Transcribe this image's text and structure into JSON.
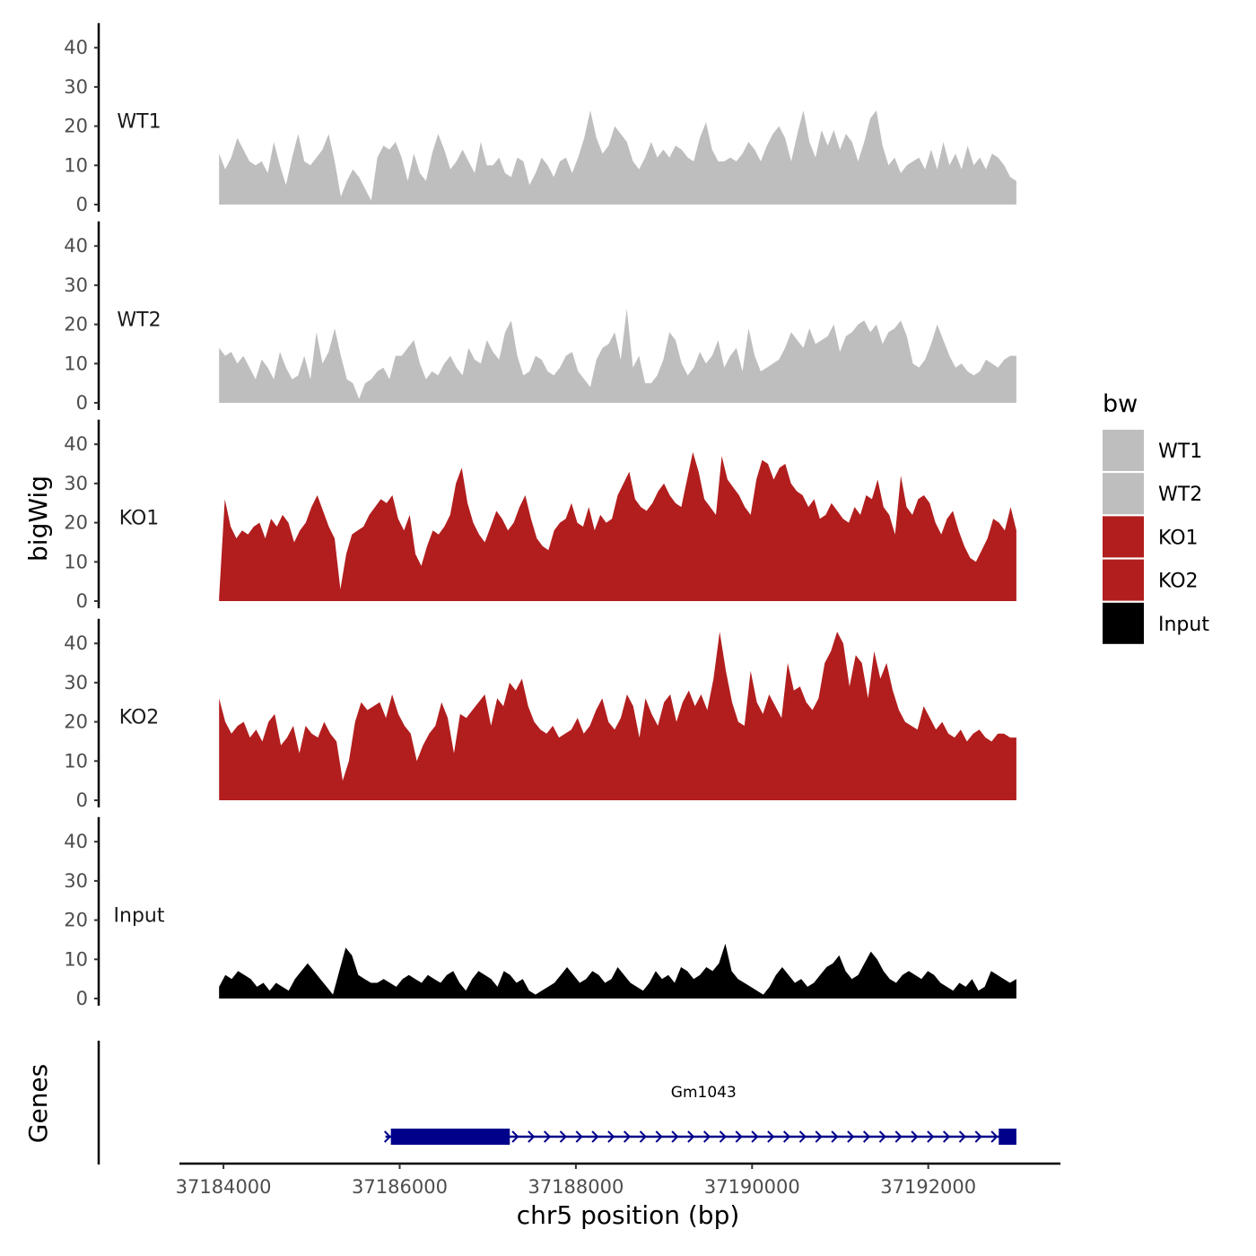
{
  "chart_data": {
    "type": "area",
    "ylabel": "bigWig",
    "xlabel": "chr5 position (bp)",
    "x_ticks": [
      37184000,
      37186000,
      37188000,
      37190000,
      37192000
    ],
    "x_tick_labels": [
      "37184000",
      "37186000",
      "37188000",
      "37190000",
      "37192000"
    ],
    "xlim": [
      37183500,
      37193500
    ],
    "y_ticks": [
      0,
      10,
      20,
      30,
      40
    ],
    "ylim": [
      0,
      44
    ],
    "x_start": 37183950,
    "x_end": 37193000,
    "series": [
      {
        "name": "WT1",
        "color": "#BEBEBE",
        "values": [
          13,
          9,
          12,
          17,
          14,
          11,
          10,
          11,
          8,
          16,
          10,
          5,
          12,
          18,
          11,
          10,
          12,
          14,
          18,
          11,
          2,
          6,
          9,
          7,
          4,
          1,
          12,
          15,
          14,
          16,
          12,
          6,
          13,
          8,
          6,
          13,
          18,
          14,
          9,
          11,
          14,
          11,
          8,
          16,
          10,
          10,
          12,
          8,
          7,
          12,
          11,
          5,
          8,
          12,
          10,
          7,
          11,
          12,
          8,
          12,
          17,
          24,
          17,
          13,
          15,
          20,
          18,
          16,
          11,
          9,
          12,
          16,
          12,
          14,
          12,
          15,
          14,
          12,
          11,
          17,
          21,
          14,
          11,
          11,
          12,
          11,
          13,
          16,
          14,
          11,
          15,
          18,
          20,
          17,
          11,
          18,
          24,
          16,
          12,
          19,
          15,
          19,
          14,
          18,
          16,
          11,
          16,
          22,
          24,
          15,
          10,
          12,
          8,
          10,
          11,
          12,
          9,
          14,
          9,
          16,
          10,
          13,
          9,
          15,
          10,
          12,
          9,
          13,
          12,
          10,
          7,
          6
        ]
      },
      {
        "name": "WT2",
        "color": "#BEBEBE",
        "values": [
          14,
          12,
          13,
          10,
          12,
          9,
          6,
          11,
          9,
          6,
          13,
          9,
          6,
          7,
          12,
          6,
          18,
          10,
          13,
          19,
          12,
          6,
          5,
          1,
          5,
          6,
          8,
          9,
          6,
          12,
          12,
          14,
          16,
          10,
          6,
          8,
          7,
          10,
          12,
          9,
          7,
          14,
          11,
          10,
          16,
          13,
          11,
          18,
          21,
          12,
          7,
          8,
          12,
          11,
          8,
          7,
          9,
          12,
          13,
          8,
          6,
          4,
          11,
          14,
          15,
          18,
          11,
          24,
          9,
          12,
          5,
          5,
          7,
          11,
          18,
          16,
          10,
          7,
          9,
          13,
          10,
          12,
          16,
          9,
          12,
          14,
          8,
          19,
          12,
          8,
          9,
          10,
          11,
          14,
          18,
          16,
          14,
          19,
          15,
          16,
          17,
          20,
          13,
          17,
          18,
          20,
          21,
          18,
          20,
          15,
          18,
          19,
          21,
          17,
          10,
          9,
          11,
          15,
          20,
          16,
          12,
          9,
          10,
          8,
          7,
          8,
          11,
          10,
          9,
          11,
          12,
          12
        ]
      },
      {
        "name": "KO1",
        "color": "#B21E1E",
        "values": [
          1,
          26,
          19,
          16,
          18,
          17,
          19,
          20,
          16,
          21,
          19,
          22,
          20,
          15,
          18,
          20,
          24,
          27,
          23,
          19,
          16,
          3,
          12,
          17,
          18,
          19,
          22,
          24,
          26,
          25,
          27,
          21,
          18,
          22,
          12,
          9,
          14,
          18,
          17,
          19,
          22,
          30,
          34,
          25,
          20,
          17,
          15,
          19,
          23,
          21,
          18,
          20,
          24,
          27,
          21,
          16,
          14,
          13,
          18,
          20,
          21,
          25,
          20,
          19,
          24,
          18,
          22,
          20,
          21,
          27,
          30,
          33,
          26,
          24,
          23,
          25,
          28,
          30,
          27,
          25,
          24,
          31,
          38,
          33,
          26,
          24,
          22,
          37,
          31,
          29,
          27,
          24,
          22,
          31,
          36,
          35,
          31,
          34,
          35,
          30,
          28,
          27,
          24,
          26,
          21,
          22,
          25,
          23,
          21,
          20,
          24,
          22,
          27,
          26,
          31,
          24,
          22,
          17,
          32,
          24,
          22,
          26,
          27,
          25,
          20,
          17,
          21,
          23,
          18,
          14,
          11,
          10,
          13,
          16,
          21,
          20,
          18,
          24,
          18
        ]
      },
      {
        "name": "KO2",
        "color": "#B21E1E",
        "values": [
          26,
          20,
          17,
          19,
          20,
          16,
          18,
          15,
          20,
          22,
          14,
          16,
          19,
          12,
          19,
          17,
          16,
          20,
          17,
          15,
          5,
          10,
          20,
          25,
          23,
          24,
          25,
          21,
          27,
          22,
          19,
          17,
          10,
          14,
          17,
          19,
          25,
          21,
          12,
          22,
          21,
          23,
          25,
          27,
          19,
          26,
          24,
          30,
          28,
          31,
          24,
          20,
          18,
          17,
          19,
          16,
          17,
          18,
          21,
          17,
          19,
          23,
          26,
          20,
          18,
          21,
          27,
          24,
          16,
          26,
          22,
          19,
          25,
          27,
          20,
          25,
          28,
          24,
          27,
          23,
          31,
          43,
          33,
          25,
          20,
          19,
          33,
          25,
          22,
          27,
          24,
          21,
          35,
          28,
          29,
          25,
          23,
          26,
          35,
          38,
          43,
          40,
          29,
          37,
          35,
          26,
          38,
          31,
          35,
          28,
          23,
          20,
          19,
          18,
          24,
          21,
          18,
          20,
          17,
          16,
          18,
          15,
          17,
          18,
          16,
          15,
          17,
          17,
          16,
          16
        ]
      },
      {
        "name": "Input",
        "color": "#000000",
        "values": [
          3,
          6,
          5,
          7,
          6,
          5,
          3,
          4,
          2,
          4,
          3,
          2,
          5,
          7,
          9,
          7,
          5,
          3,
          1,
          7,
          13,
          11,
          6,
          5,
          4,
          4,
          5,
          4,
          3,
          5,
          6,
          5,
          4,
          6,
          5,
          4,
          6,
          7,
          4,
          2,
          5,
          7,
          6,
          5,
          3,
          7,
          6,
          4,
          5,
          2,
          1,
          2,
          3,
          4,
          6,
          8,
          6,
          4,
          5,
          7,
          6,
          4,
          5,
          8,
          6,
          4,
          3,
          2,
          4,
          7,
          5,
          6,
          4,
          8,
          7,
          5,
          6,
          8,
          7,
          9,
          14,
          7,
          5,
          4,
          3,
          2,
          1,
          3,
          6,
          8,
          6,
          4,
          5,
          3,
          4,
          6,
          8,
          9,
          11,
          7,
          5,
          6,
          9,
          12,
          10,
          7,
          5,
          4,
          6,
          7,
          6,
          5,
          7,
          6,
          4,
          3,
          2,
          4,
          3,
          5,
          2,
          3,
          7,
          6,
          5,
          4,
          5
        ]
      }
    ],
    "gene": {
      "name": "Gm1043",
      "start": 37185900,
      "end": 37193000,
      "thick_blocks": [
        [
          37185900,
          37187250
        ],
        [
          37192800,
          37193000
        ]
      ],
      "strand": "+",
      "color": "#00008B"
    },
    "gene_track_title": "Genes",
    "legend": {
      "title": "bw",
      "position": "right",
      "entries": [
        {
          "label": "WT1",
          "color": "#BEBEBE"
        },
        {
          "label": "WT2",
          "color": "#BEBEBE"
        },
        {
          "label": "KO1",
          "color": "#B21E1E"
        },
        {
          "label": "KO2",
          "color": "#B21E1E"
        },
        {
          "label": "Input",
          "color": "#000000"
        }
      ]
    }
  }
}
